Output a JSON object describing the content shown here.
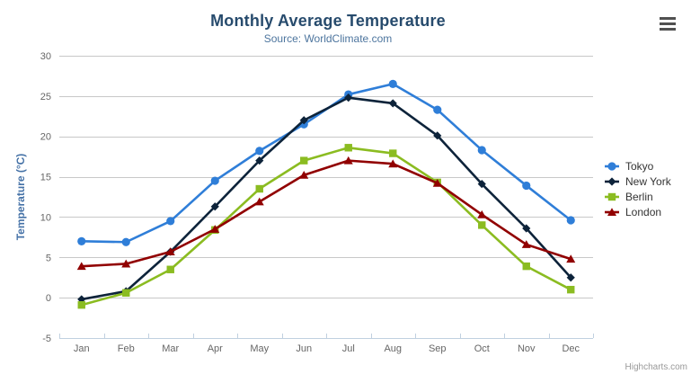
{
  "chart": {
    "title": "Monthly Average Temperature",
    "subtitle": "Source: WorldClimate.com",
    "credit": "Highcharts.com",
    "context_menu_icon": "hamburger-menu"
  },
  "chart_data": {
    "type": "line",
    "title": "Monthly Average Temperature",
    "subtitle": "Source: WorldClimate.com",
    "categories": [
      "Jan",
      "Feb",
      "Mar",
      "Apr",
      "May",
      "Jun",
      "Jul",
      "Aug",
      "Sep",
      "Oct",
      "Nov",
      "Dec"
    ],
    "series": [
      {
        "name": "Tokyo",
        "color": "#2f7ed8",
        "marker": "circle",
        "values": [
          7.0,
          6.9,
          9.5,
          14.5,
          18.2,
          21.5,
          25.2,
          26.5,
          23.3,
          18.3,
          13.9,
          9.6
        ]
      },
      {
        "name": "New York",
        "color": "#0d233a",
        "marker": "diamond",
        "values": [
          -0.2,
          0.8,
          5.7,
          11.3,
          17.0,
          22.0,
          24.8,
          24.1,
          20.1,
          14.1,
          8.6,
          2.5
        ]
      },
      {
        "name": "Berlin",
        "color": "#8bbc21",
        "marker": "square",
        "values": [
          -0.9,
          0.6,
          3.5,
          8.4,
          13.5,
          17.0,
          18.6,
          17.9,
          14.3,
          9.0,
          3.9,
          1.0
        ]
      },
      {
        "name": "London",
        "color": "#910000",
        "marker": "triangle",
        "values": [
          3.9,
          4.2,
          5.7,
          8.5,
          11.9,
          15.2,
          17.0,
          16.6,
          14.2,
          10.3,
          6.6,
          4.8
        ]
      }
    ],
    "xlabel": "",
    "ylabel": "Temperature (°C)",
    "ylim": [
      -5,
      30
    ],
    "y_ticks": [
      -5,
      0,
      5,
      10,
      15,
      20,
      25,
      30
    ],
    "grid": true,
    "legend_position": "right",
    "colors": {
      "title": "#274b6d",
      "subtitle": "#4d759e",
      "axis_label": "#666666",
      "y_axis_title": "#4572a7",
      "gridline": "#c8c8c8",
      "axis_line": "#c0d0e0",
      "legend_text": "#333333",
      "credit": "#999999"
    }
  }
}
